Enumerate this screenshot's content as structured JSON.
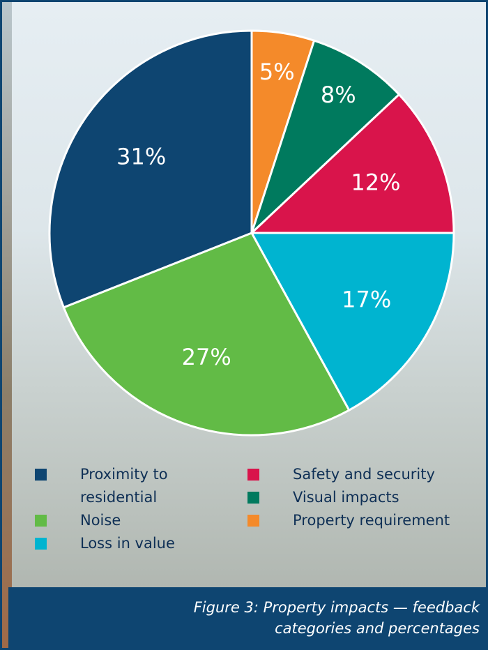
{
  "chart_data": {
    "type": "pie",
    "caption": "Figure 3: Property impacts — feedback categories and percentages",
    "categories": [
      "Proximity to residential",
      "Noise",
      "Loss in value",
      "Safety and security",
      "Visual impacts",
      "Property requirement"
    ],
    "values": [
      31,
      27,
      17,
      12,
      8,
      5
    ],
    "value_labels": [
      "31%",
      "27%",
      "17%",
      "12%",
      "8%",
      "5%"
    ],
    "colors": [
      "#0e4571",
      "#62bb46",
      "#00b4d0",
      "#d9144b",
      "#007a5e",
      "#f48a2a"
    ]
  }
}
